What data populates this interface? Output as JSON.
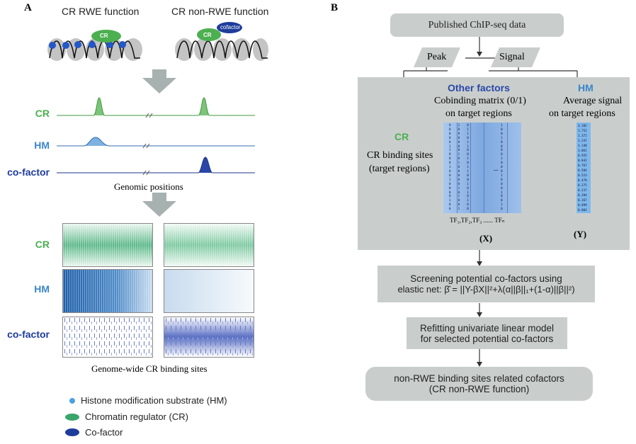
{
  "panel_a": {
    "letter": "A",
    "header_rwe": "CR RWE function",
    "header_nonrwe": "CR non-RWE function",
    "badge_cr": "CR",
    "badge_cofactor": "cofactor",
    "tracks": [
      {
        "label": "CR",
        "color": "#4caf50"
      },
      {
        "label": "HM",
        "color": "#3a86c8"
      },
      {
        "label": "co-factor",
        "color": "#1e3c9a"
      }
    ],
    "genomic_positions": "Genomic positions",
    "heatmap_labels": [
      "CR",
      "HM",
      "co-factor"
    ],
    "heatmap_caption": "Genome-wide CR binding sites",
    "legend": [
      {
        "text": "Histone modification substrate (HM)",
        "color": "#4aa3df"
      },
      {
        "text": "Chromatin regulator (CR)",
        "color": "#3aa56a"
      },
      {
        "text": "Co-factor",
        "color": "#1e3c9a"
      }
    ]
  },
  "panel_b": {
    "letter": "B",
    "top_box": "Published ChIP-seq data",
    "peak": "Peak",
    "signal": "Signal",
    "other_factors": "Other factors",
    "cobinding_line1": "Cobinding matrix (0/1)",
    "cobinding_line2": "on target regions",
    "hm_title": "HM",
    "avg_line1": "Average signal",
    "avg_line2": "on target regions",
    "cr_title": "CR",
    "cr_sites_line1": "CR binding sites",
    "cr_sites_line2": "(target regions)",
    "tf_labels": "TF₁,TF₂,TF₃ ...... TFₙ",
    "x_label": "(X)",
    "y_label": "(Y)",
    "ellipsis": "...",
    "matrix_rows": [
      [
        "0",
        "1",
        "0",
        "1"
      ],
      [
        "0",
        "0",
        "1",
        "0"
      ],
      [
        "0",
        "0",
        "1",
        "0"
      ],
      [
        "0",
        "0",
        "0",
        "1"
      ],
      [
        "0",
        "0",
        "1",
        "0"
      ],
      [
        "1",
        "0",
        "1",
        "0"
      ],
      [
        "1",
        "0",
        "0",
        "0"
      ],
      [
        "0",
        "1",
        "0",
        "0"
      ],
      [
        "0",
        "0",
        "1",
        "1"
      ],
      [
        "0",
        "1",
        "0",
        "0"
      ],
      [
        "1",
        "0",
        "1",
        "0"
      ],
      [
        "0",
        "0",
        "1",
        "0"
      ],
      [
        "0",
        "0",
        "0",
        "1"
      ],
      [
        "1",
        "0",
        "0",
        "0"
      ],
      [
        "0",
        "0",
        "1",
        "0"
      ],
      [
        "0",
        "1",
        "0",
        "0"
      ],
      [
        "0",
        "0",
        "1",
        "1"
      ],
      [
        "0",
        "1",
        "0",
        "0"
      ],
      [
        "1",
        "0",
        "1",
        "0"
      ],
      [
        "0",
        "0",
        "0",
        "1"
      ],
      [
        "0",
        "1",
        "0",
        "0"
      ]
    ],
    "signal_values": [
      "3.182",
      "1.752",
      "1.372",
      "1.247",
      "1.148",
      "1.061",
      "0.925",
      "0.842",
      "0.767",
      "0.584",
      "0.523",
      "0.470",
      "0.275",
      "0.237",
      "0.204",
      "0.167",
      "0.099",
      "0.003"
    ],
    "screening_line1": "Screening potential co-factors using",
    "screening_line2": "elastic net: β̂ = ||Y-βX||²+λ(α||β||₁+(1-α)||β||²)",
    "refit_line1": "Refitting univariate linear model",
    "refit_line2": "for selected potential co-factors",
    "final_line1": "non-RWE binding sites related cofactors",
    "final_line2": "(CR non-RWE function)"
  }
}
